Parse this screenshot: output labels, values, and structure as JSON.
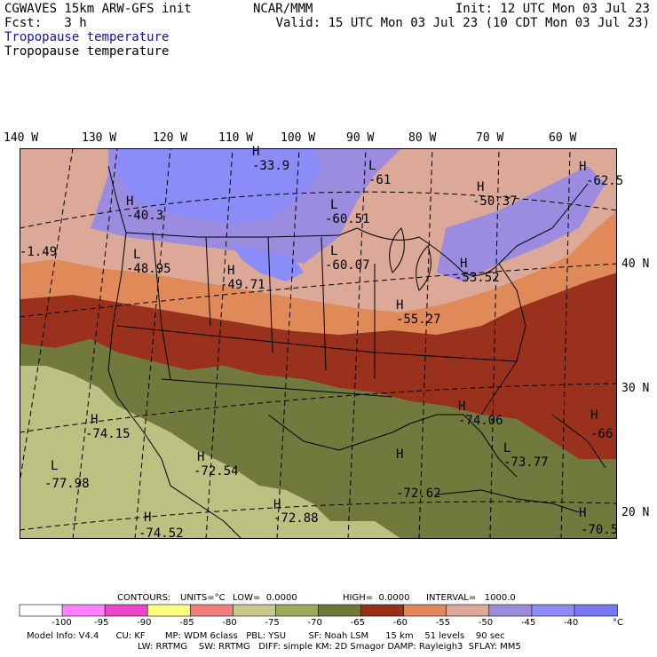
{
  "header": {
    "title_left": "CGWAVES 15km ARW-GFS init",
    "center_title": "NCAR/MMM",
    "init": "Init: 12 UTC Mon 03 Jul 23",
    "fcst": "Fcst:   3 h",
    "valid": "Valid: 15 UTC Mon 03 Jul 23 (10 CDT Mon 03 Jul 23)",
    "subtitle_blue": "Tropopause temperature",
    "subtitle_black": "Tropopause temperature"
  },
  "lon_labels": [
    "140 W",
    "130 W",
    "120 W",
    "110 W",
    "100 W",
    "90 W",
    "80 W",
    "70 W",
    "60 W"
  ],
  "lat_labels": [
    "40 N",
    "30 N",
    "20 N"
  ],
  "extrema": [
    {
      "type": "H",
      "value": "-33.9"
    },
    {
      "type": "L",
      "value": "-61"
    },
    {
      "type": "H",
      "value": "-62.5"
    },
    {
      "type": "H",
      "value": "-50.37"
    },
    {
      "type": "L",
      "value": "-60.51"
    },
    {
      "type": "H",
      "value": "-40.3"
    },
    {
      "type": "",
      "value": "-1.49"
    },
    {
      "type": "L",
      "value": "-48.95"
    },
    {
      "type": "H",
      "value": "-49.71"
    },
    {
      "type": "L",
      "value": "-60.07"
    },
    {
      "type": "H",
      "value": "-53.52"
    },
    {
      "type": "H",
      "value": "-55.27"
    },
    {
      "type": "H",
      "value": "-74.06"
    },
    {
      "type": "H",
      "value": "-74.15"
    },
    {
      "type": "H",
      "value": "-66"
    },
    {
      "type": "H",
      "value": "-72.54"
    },
    {
      "type": "L",
      "value": "-73.77"
    },
    {
      "type": "L",
      "value": "-77.98"
    },
    {
      "type": "H",
      "value": "-72.62"
    },
    {
      "type": "H",
      "value": "-72.88"
    },
    {
      "type": "H",
      "value": "-74.52"
    },
    {
      "type": "H",
      "value": "-70.5"
    }
  ],
  "colorbar": {
    "units_label": "°C",
    "labels": [
      "-100",
      "-95",
      "-90",
      "-85",
      "-80",
      "-75",
      "-70",
      "-65",
      "-60",
      "-55",
      "-50",
      "-45",
      "-40"
    ],
    "colors": [
      "#ffffff",
      "#ff80ff",
      "#ee44cc",
      "#ffff80",
      "#f08080",
      "#c8c88c",
      "#a0a858",
      "#707838",
      "#983018",
      "#e08858",
      "#dca898",
      "#9c8ce0",
      "#8c8cf8",
      "#7878f4"
    ]
  },
  "contours": {
    "label": "CONTOURS:",
    "units": "UNITS=°C",
    "low": "LOW=  0.0000",
    "high": "HIGH=  0.0000",
    "interval": "INTERVAL=   1000.0"
  },
  "model_info": {
    "line1": "Model Info: V4.4      CU: KF       MP: WDM 6class   PBL: YSU        SF: Noah LSM      15 km    51 levels    90 sec",
    "line2": "LW: RRTMG    SW: RRTMG   DIFF: simple KM: 2D Smagor DAMP: Rayleigh3  SFLAY: MM5"
  }
}
